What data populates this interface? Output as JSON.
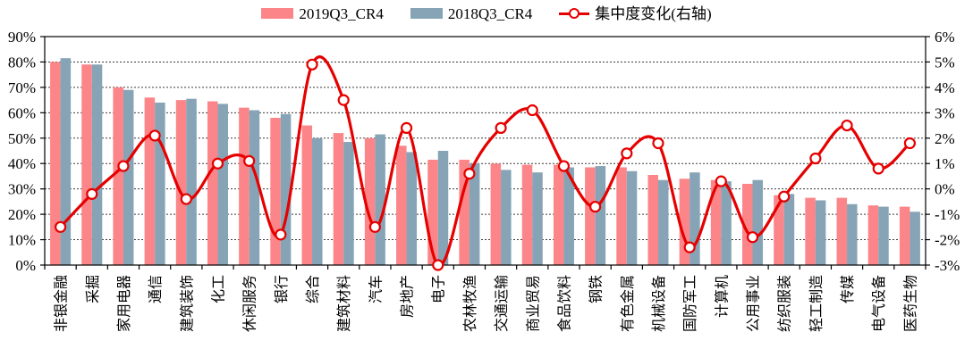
{
  "chart_data": {
    "type": "bar+line",
    "categories": [
      "非银金融",
      "采掘",
      "家用电器",
      "通信",
      "建筑装饰",
      "化工",
      "休闲服务",
      "银行",
      "综合",
      "建筑材料",
      "汽车",
      "房地产",
      "电子",
      "农林牧渔",
      "交通运输",
      "商业贸易",
      "食品饮料",
      "钢铁",
      "有色金属",
      "机械设备",
      "国防军工",
      "计算机",
      "公用事业",
      "纺织服装",
      "轻工制造",
      "传媒",
      "电气设备",
      "医药生物"
    ],
    "series": [
      {
        "name": "2019Q3_CR4",
        "type": "bar",
        "axis": "left",
        "color": "#FB8588",
        "values": [
          80,
          79,
          70,
          66,
          65,
          64.5,
          62,
          58,
          55,
          52,
          50,
          47,
          41.5,
          41.5,
          40,
          39.5,
          39.5,
          38.5,
          38.5,
          35.5,
          34,
          33.5,
          32,
          27.5,
          26.5,
          26.5,
          23.5,
          23
        ]
      },
      {
        "name": "2018Q3_CR4",
        "type": "bar",
        "axis": "left",
        "color": "#87A4B6",
        "values": [
          81.5,
          79,
          69,
          64,
          65.5,
          63.5,
          61,
          59.5,
          50,
          48.5,
          51.5,
          44.5,
          45,
          40,
          37.5,
          36.5,
          38.5,
          39,
          37,
          33.5,
          36.5,
          33,
          33.5,
          28,
          25.5,
          24,
          23,
          21
        ]
      },
      {
        "name": "集中度变化(右轴)",
        "type": "line",
        "axis": "right",
        "color": "#E60000",
        "marker_fill": "#FFFFFF",
        "values": [
          -1.5,
          -0.2,
          0.9,
          2.1,
          -0.4,
          1.0,
          1.1,
          -1.8,
          4.9,
          3.5,
          -1.5,
          2.4,
          -3.0,
          0.6,
          2.4,
          3.1,
          0.9,
          -0.7,
          1.4,
          1.8,
          -2.3,
          0.3,
          -1.9,
          -0.3,
          1.2,
          2.5,
          0.8,
          1.8
        ]
      }
    ],
    "left_axis": {
      "min": 0,
      "max": 90,
      "step": 10,
      "tick_labels": [
        "0%",
        "10%",
        "20%",
        "30%",
        "40%",
        "50%",
        "60%",
        "70%",
        "80%",
        "90%"
      ]
    },
    "right_axis": {
      "min": -3,
      "max": 6,
      "step": 1,
      "tick_labels": [
        "-3%",
        "-2%",
        "-1%",
        "0%",
        "1%",
        "2%",
        "3%",
        "4%",
        "5%",
        "6%"
      ]
    },
    "grid": true,
    "grid_color": "#3a3a3a",
    "axis_color": "#000000",
    "text_color": "#000000",
    "legend_position": "top"
  }
}
